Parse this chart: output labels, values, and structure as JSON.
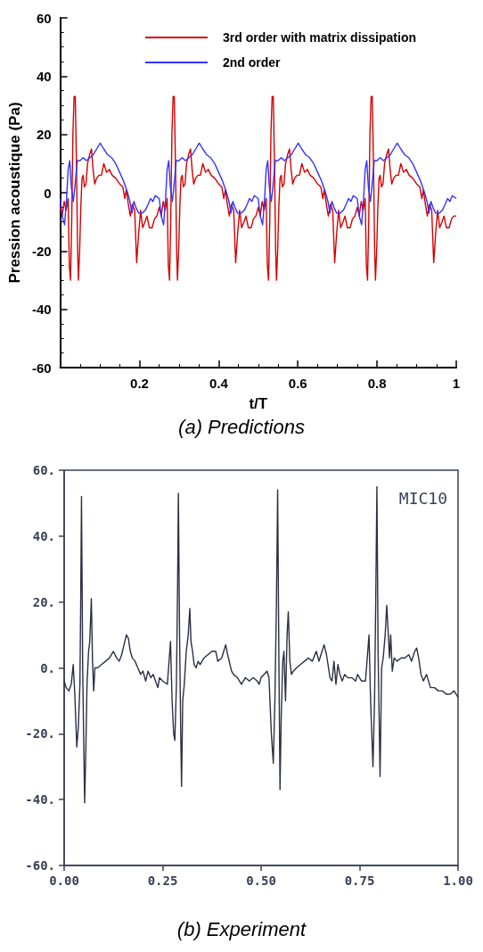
{
  "chart_data": [
    {
      "type": "line",
      "title": "(a) Predictions",
      "xlabel": "t/T",
      "ylabel": "Pression acoustique (Pa)",
      "xlim": [
        0,
        1
      ],
      "ylim": [
        -60,
        60
      ],
      "xticks": [
        {
          "value": 0,
          "label": null
        },
        0.2,
        0.4,
        0.6,
        0.8,
        1
      ],
      "yticks": [
        -60,
        -40,
        -20,
        0,
        20,
        40,
        60
      ],
      "legend": "top right",
      "marker": "none",
      "line_style": "solid",
      "series": [
        {
          "name": "3rd order with matrix dissipation",
          "color": "#d40000",
          "x": [
            0,
            0.005,
            0.01,
            0.015,
            0.02,
            0.023,
            0.026,
            0.029,
            0.032,
            0.035,
            0.038,
            0.041,
            0.044,
            0.046,
            0.049,
            0.052,
            0.055,
            0.058,
            0.061,
            0.065,
            0.069,
            0.074,
            0.079,
            0.083,
            0.087,
            0.092,
            0.098,
            0.104,
            0.11,
            0.117,
            0.124,
            0.131,
            0.14,
            0.15,
            0.158,
            0.163,
            0.167,
            0.172,
            0.177,
            0.182,
            0.188,
            0.193,
            0.198,
            0.203,
            0.208,
            0.214,
            0.219,
            0.225,
            0.232,
            0.238,
            0.244,
            0.25,
            0.255,
            0.26,
            0.265,
            0.27,
            0.273,
            0.276,
            0.279,
            0.282,
            0.285,
            0.288,
            0.291,
            0.294,
            0.296,
            0.299,
            0.302,
            0.305,
            0.308,
            0.311,
            0.315,
            0.319,
            0.324,
            0.329,
            0.333,
            0.337,
            0.342,
            0.348,
            0.354,
            0.36,
            0.367,
            0.374,
            0.381,
            0.39,
            0.4,
            0.408,
            0.413,
            0.417,
            0.422,
            0.427,
            0.432,
            0.438,
            0.443,
            0.448,
            0.453,
            0.458,
            0.464,
            0.469,
            0.475,
            0.482,
            0.488,
            0.494,
            0.5,
            0.505,
            0.51,
            0.515,
            0.52,
            0.523,
            0.526,
            0.529,
            0.532,
            0.535,
            0.538,
            0.541,
            0.544,
            0.546,
            0.549,
            0.552,
            0.555,
            0.558,
            0.561,
            0.565,
            0.569,
            0.574,
            0.579,
            0.583,
            0.587,
            0.592,
            0.598,
            0.604,
            0.61,
            0.617,
            0.624,
            0.631,
            0.64,
            0.65,
            0.658,
            0.663,
            0.667,
            0.672,
            0.677,
            0.682,
            0.688,
            0.693,
            0.698,
            0.703,
            0.708,
            0.714,
            0.719,
            0.725,
            0.732,
            0.738,
            0.744,
            0.75,
            0.755,
            0.76,
            0.765,
            0.77,
            0.773,
            0.776,
            0.779,
            0.782,
            0.785,
            0.788,
            0.791,
            0.794,
            0.796,
            0.799,
            0.802,
            0.805,
            0.808,
            0.811,
            0.815,
            0.819,
            0.824,
            0.829,
            0.833,
            0.837,
            0.842,
            0.848,
            0.854,
            0.86,
            0.867,
            0.874,
            0.881,
            0.89,
            0.9,
            0.908,
            0.913,
            0.917,
            0.922,
            0.927,
            0.932,
            0.938,
            0.943,
            0.948,
            0.953,
            0.958,
            0.964,
            0.969,
            0.975,
            0.982,
            0.988,
            0.994,
            1
          ],
          "values": [
            -5,
            -8,
            -3,
            -6,
            -2,
            -25,
            -30,
            -10,
            20,
            33,
            33,
            10,
            -20,
            -30,
            -20,
            -5,
            5,
            6,
            2,
            3,
            10,
            13,
            15,
            8,
            3,
            5,
            6,
            6,
            10,
            7,
            8,
            6,
            5,
            3,
            2,
            -2,
            1,
            -4,
            -8,
            -4,
            -6,
            -24,
            -14,
            -6,
            -12,
            -10,
            -8,
            -12,
            -12,
            -9,
            -8,
            -5,
            -8,
            -3,
            -6,
            -2,
            -25,
            -30,
            -10,
            20,
            33,
            33,
            10,
            -20,
            -30,
            -20,
            -5,
            5,
            6,
            2,
            3,
            10,
            13,
            15,
            8,
            3,
            5,
            6,
            6,
            10,
            7,
            8,
            6,
            5,
            3,
            2,
            -2,
            1,
            -4,
            -8,
            -4,
            -6,
            -24,
            -14,
            -6,
            -12,
            -10,
            -8,
            -12,
            -12,
            -9,
            -8,
            -5,
            -8,
            -3,
            -6,
            -2,
            -25,
            -30,
            -10,
            20,
            33,
            33,
            10,
            -20,
            -30,
            -20,
            -5,
            5,
            6,
            2,
            3,
            10,
            13,
            15,
            8,
            3,
            5,
            6,
            6,
            10,
            7,
            8,
            6,
            5,
            3,
            2,
            -2,
            1,
            -4,
            -8,
            -4,
            -6,
            -24,
            -14,
            -6,
            -12,
            -10,
            -8,
            -12,
            -12,
            -9,
            -8,
            -5,
            -8,
            -3,
            -6,
            -2,
            -25,
            -30,
            -10,
            20,
            33,
            33,
            10,
            -20,
            -30,
            -20,
            -5,
            5,
            6,
            2,
            3,
            10,
            13,
            15,
            8,
            3,
            5,
            6,
            6,
            10,
            7,
            8,
            6,
            5,
            3,
            2,
            -2,
            1,
            -4,
            -8,
            -4,
            -6,
            -24,
            -14,
            -6,
            -12,
            -10,
            -8,
            -12,
            -12,
            -9,
            -8,
            -8
          ]
        },
        {
          "name": "2nd order",
          "color": "#3333ff",
          "x": [
            0,
            0.005,
            0.011,
            0.016,
            0.02,
            0.024,
            0.028,
            0.033,
            0.037,
            0.043,
            0.05,
            0.058,
            0.066,
            0.075,
            0.083,
            0.092,
            0.101,
            0.11,
            0.12,
            0.13,
            0.14,
            0.15,
            0.16,
            0.17,
            0.176,
            0.181,
            0.186,
            0.191,
            0.198,
            0.207,
            0.215,
            0.222,
            0.228,
            0.234,
            0.24,
            0.25,
            0.255,
            0.261,
            0.266,
            0.27,
            0.274,
            0.278,
            0.283,
            0.287,
            0.293,
            0.3,
            0.308,
            0.316,
            0.325,
            0.333,
            0.342,
            0.351,
            0.36,
            0.37,
            0.38,
            0.39,
            0.4,
            0.41,
            0.42,
            0.426,
            0.431,
            0.436,
            0.441,
            0.448,
            0.457,
            0.465,
            0.472,
            0.478,
            0.484,
            0.49,
            0.5,
            0.505,
            0.511,
            0.516,
            0.52,
            0.524,
            0.528,
            0.533,
            0.537,
            0.543,
            0.55,
            0.558,
            0.566,
            0.575,
            0.583,
            0.592,
            0.601,
            0.61,
            0.62,
            0.63,
            0.64,
            0.65,
            0.66,
            0.67,
            0.676,
            0.681,
            0.686,
            0.691,
            0.698,
            0.707,
            0.715,
            0.722,
            0.728,
            0.734,
            0.74,
            0.75,
            0.755,
            0.761,
            0.766,
            0.77,
            0.774,
            0.778,
            0.783,
            0.787,
            0.793,
            0.8,
            0.808,
            0.816,
            0.825,
            0.833,
            0.842,
            0.851,
            0.86,
            0.87,
            0.88,
            0.89,
            0.9,
            0.91,
            0.92,
            0.926,
            0.931,
            0.936,
            0.941,
            0.948,
            0.957,
            0.965,
            0.972,
            0.978,
            0.984,
            0.99,
            1
          ],
          "values": [
            -2,
            -8,
            -11,
            -2,
            8,
            11,
            2,
            -3,
            2,
            11,
            11,
            12,
            11,
            12,
            13,
            15,
            17,
            15,
            13,
            12,
            10,
            7,
            4,
            0,
            -3,
            -7,
            -3,
            -5,
            -7,
            -7,
            -6,
            -4,
            -2,
            -3,
            -1,
            -2,
            -8,
            -11,
            -2,
            8,
            11,
            2,
            -3,
            2,
            11,
            11,
            12,
            11,
            12,
            13,
            15,
            17,
            15,
            13,
            12,
            10,
            7,
            4,
            0,
            -3,
            -7,
            -3,
            -5,
            -7,
            -7,
            -6,
            -4,
            -2,
            -3,
            -1,
            -2,
            -8,
            -11,
            -2,
            8,
            11,
            2,
            -3,
            2,
            11,
            11,
            12,
            11,
            12,
            13,
            15,
            17,
            15,
            13,
            12,
            10,
            7,
            4,
            0,
            -3,
            -7,
            -3,
            -5,
            -7,
            -7,
            -6,
            -4,
            -2,
            -3,
            -1,
            -2,
            -8,
            -11,
            -2,
            8,
            11,
            2,
            -3,
            2,
            11,
            11,
            12,
            11,
            12,
            13,
            15,
            17,
            15,
            13,
            12,
            10,
            7,
            4,
            0,
            -3,
            -7,
            -3,
            -5,
            -7,
            -7,
            -6,
            -4,
            -2,
            -3,
            -1,
            -2
          ]
        }
      ]
    },
    {
      "type": "line",
      "title": "(b) Experiment",
      "annotations": [
        "MIC10"
      ],
      "xlim": [
        0,
        1
      ],
      "ylim": [
        -60,
        60
      ],
      "xticks": [
        {
          "value": 0,
          "label": "0.00"
        },
        {
          "value": 0.25,
          "label": "0.25"
        },
        {
          "value": 0.5,
          "label": "0.50"
        },
        {
          "value": 0.75,
          "label": "0.75"
        },
        {
          "value": 1,
          "label": "1.00"
        }
      ],
      "yticks": [
        {
          "value": -60,
          "label": "-60."
        },
        {
          "value": -40,
          "label": "-40."
        },
        {
          "value": -20,
          "label": "-20."
        },
        {
          "value": 0,
          "label": "0."
        },
        {
          "value": 20,
          "label": "20."
        },
        {
          "value": 40,
          "label": "40."
        },
        {
          "value": 60,
          "label": "60."
        }
      ],
      "marker": "none",
      "line_style": "solid",
      "series": [
        {
          "color": "#2b2f44",
          "x": [
            0,
            0.005,
            0.012,
            0.018,
            0.023,
            0.027,
            0.032,
            0.036,
            0.04,
            0.042,
            0.044,
            0.047,
            0.05,
            0.052,
            0.055,
            0.058,
            0.062,
            0.065,
            0.069,
            0.072,
            0.075,
            0.078,
            0.085,
            0.095,
            0.105,
            0.115,
            0.125,
            0.133,
            0.14,
            0.146,
            0.152,
            0.158,
            0.163,
            0.168,
            0.173,
            0.18,
            0.187,
            0.194,
            0.2,
            0.207,
            0.213,
            0.22,
            0.226,
            0.232,
            0.238,
            0.242,
            0.25,
            0.262,
            0.27,
            0.274,
            0.278,
            0.281,
            0.285,
            0.288,
            0.29,
            0.293,
            0.296,
            0.298,
            0.301,
            0.305,
            0.31,
            0.315,
            0.319,
            0.322,
            0.326,
            0.33,
            0.335,
            0.34,
            0.345,
            0.355,
            0.365,
            0.375,
            0.385,
            0.39,
            0.4,
            0.41,
            0.415,
            0.425,
            0.43,
            0.44,
            0.45,
            0.46,
            0.47,
            0.48,
            0.49,
            0.495,
            0.5,
            0.515,
            0.52,
            0.526,
            0.531,
            0.535,
            0.539,
            0.542,
            0.545,
            0.548,
            0.551,
            0.555,
            0.558,
            0.562,
            0.566,
            0.569,
            0.573,
            0.577,
            0.582,
            0.59,
            0.6,
            0.61,
            0.62,
            0.63,
            0.64,
            0.647,
            0.652,
            0.66,
            0.666,
            0.675,
            0.68,
            0.685,
            0.69,
            0.695,
            0.7,
            0.706,
            0.712,
            0.72,
            0.73,
            0.74,
            0.745,
            0.755,
            0.765,
            0.774,
            0.778,
            0.784,
            0.788,
            0.791,
            0.794,
            0.797,
            0.802,
            0.806,
            0.81,
            0.815,
            0.819,
            0.823,
            0.826,
            0.829,
            0.833,
            0.838,
            0.845,
            0.855,
            0.865,
            0.875,
            0.882,
            0.89,
            0.895,
            0.9,
            0.906,
            0.912,
            0.92,
            0.93,
            0.94,
            0.95,
            0.96,
            0.97,
            0.98,
            0.99,
            1
          ],
          "values": [
            -4,
            -6,
            -7,
            -5,
            1,
            -8,
            -24,
            -18,
            -5,
            20,
            52,
            0,
            -25,
            -41,
            -25,
            -5,
            5,
            8,
            21,
            2,
            -7,
            0,
            0,
            1,
            2,
            3,
            5,
            3,
            2,
            4,
            7,
            10,
            9,
            5,
            3,
            2,
            0,
            -2,
            -1,
            -4,
            -1,
            -3,
            -2,
            -4,
            -6,
            -3,
            -4,
            -5,
            8,
            -10,
            -20,
            -22,
            -5,
            25,
            53,
            10,
            -20,
            -36,
            -10,
            -5,
            5,
            10,
            18,
            8,
            5,
            1,
            0,
            2,
            1,
            3,
            4,
            5,
            5,
            2,
            3,
            7,
            4,
            -1,
            -2,
            -3,
            -5,
            -3,
            -4,
            -3,
            -4,
            -5,
            -3,
            -1,
            -3,
            -20,
            -29,
            -10,
            20,
            54,
            5,
            -37,
            -15,
            2,
            5,
            -10,
            10,
            17,
            2,
            -2,
            -1,
            0,
            1,
            2,
            3,
            2,
            5,
            2,
            4,
            7,
            4,
            -3,
            -4,
            2,
            -5,
            1,
            -2,
            -4,
            -2,
            -3,
            -3,
            -4,
            -2,
            -4,
            -4,
            10,
            -10,
            -30,
            -10,
            20,
            55,
            5,
            -33,
            0,
            3,
            10,
            19,
            10,
            3,
            10,
            -1,
            3,
            2,
            3,
            3,
            4,
            2,
            5,
            6,
            3,
            -2,
            -4,
            -2,
            -6,
            -6,
            -7,
            -7,
            -8,
            -8,
            -7,
            -9
          ]
        }
      ]
    }
  ]
}
